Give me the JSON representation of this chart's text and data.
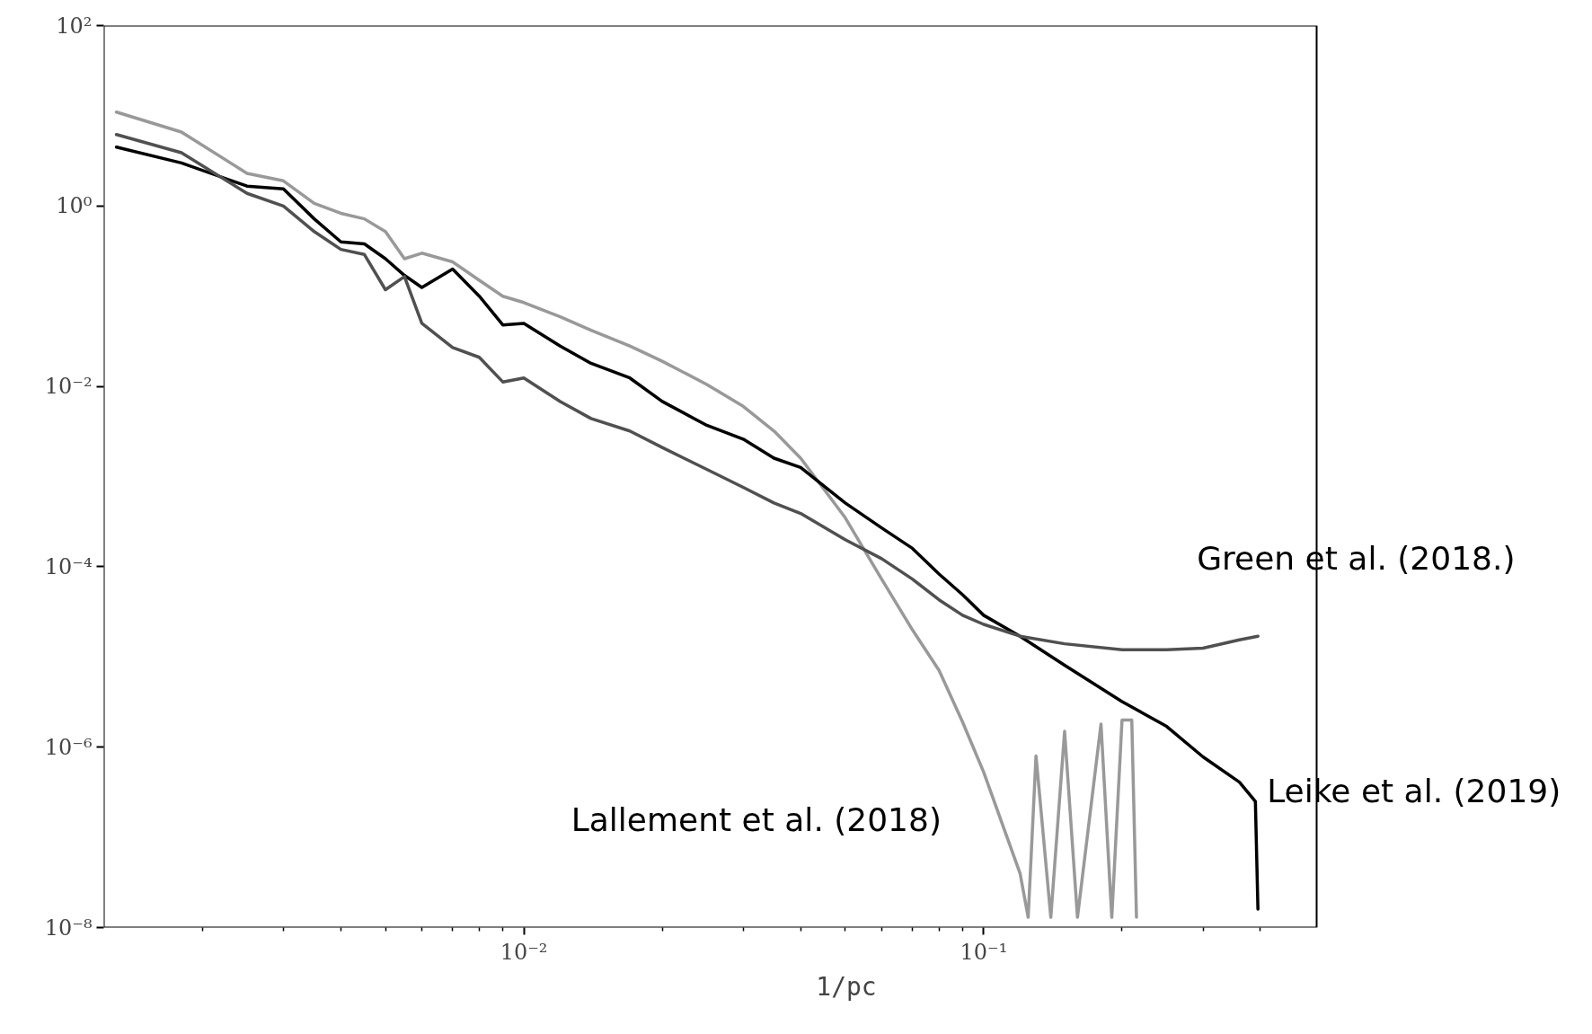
{
  "chart_data": {
    "type": "line",
    "xlabel": "1/pc",
    "log": "xy",
    "grid": false,
    "marker": "none",
    "line_style": "solid",
    "xlim": [
      0.00122,
      0.53
    ],
    "ylim": [
      1e-08,
      100
    ],
    "xticks": [
      {
        "value": 0.002,
        "label": null
      },
      {
        "value": 0.003,
        "label": null
      },
      {
        "value": 0.004,
        "label": null
      },
      {
        "value": 0.005,
        "label": null
      },
      {
        "value": 0.006,
        "label": null
      },
      {
        "value": 0.007,
        "label": null
      },
      {
        "value": 0.008,
        "label": null
      },
      {
        "value": 0.009,
        "label": null
      },
      {
        "value": 0.01,
        "label": "10⁻²"
      },
      {
        "value": 0.02,
        "label": null
      },
      {
        "value": 0.03,
        "label": null
      },
      {
        "value": 0.04,
        "label": null
      },
      {
        "value": 0.05,
        "label": null
      },
      {
        "value": 0.06,
        "label": null
      },
      {
        "value": 0.07,
        "label": null
      },
      {
        "value": 0.08,
        "label": null
      },
      {
        "value": 0.09,
        "label": null
      },
      {
        "value": 0.1,
        "label": "10⁻¹"
      },
      {
        "value": 0.2,
        "label": null
      },
      {
        "value": 0.3,
        "label": null
      },
      {
        "value": 0.4,
        "label": null
      }
    ],
    "yticks": [
      {
        "value": 1e-08,
        "label": "10⁻⁸"
      },
      {
        "value": 1e-06,
        "label": "10⁻⁶"
      },
      {
        "value": 0.0001,
        "label": "10⁻⁴"
      },
      {
        "value": 0.01,
        "label": "10⁻²"
      },
      {
        "value": 1,
        "label": "10⁰"
      },
      {
        "value": 100,
        "label": "10²"
      }
    ],
    "series": [
      {
        "name": "Lallement et al. (2018)",
        "color": "#999999",
        "x": [
          0.0013,
          0.0018,
          0.0025,
          0.003,
          0.0035,
          0.004,
          0.0045,
          0.005,
          0.0055,
          0.006,
          0.007,
          0.008,
          0.009,
          0.01,
          0.012,
          0.014,
          0.017,
          0.02,
          0.025,
          0.03,
          0.035,
          0.04,
          0.05,
          0.06,
          0.07,
          0.08,
          0.09,
          0.1,
          0.12,
          0.125,
          0.13,
          0.14,
          0.15,
          0.16,
          0.18,
          0.19,
          0.2,
          0.21,
          0.215
        ],
        "values": [
          11,
          6.6,
          2.3,
          1.9,
          1.07,
          0.83,
          0.72,
          0.52,
          0.26,
          0.3,
          0.24,
          0.15,
          0.1,
          0.085,
          0.059,
          0.042,
          0.028,
          0.019,
          0.0105,
          0.006,
          0.0032,
          0.0016,
          0.00035,
          7.3e-05,
          2e-05,
          7.1e-06,
          1.9e-06,
          5.3e-07,
          4e-08,
          1.3e-08,
          8e-07,
          1.3e-08,
          1.5e-06,
          1.3e-08,
          1.8e-06,
          1.3e-08,
          2e-06,
          2e-06,
          1.3e-08
        ]
      },
      {
        "name": "Leike et al. (2019)",
        "color": "#000000",
        "x": [
          0.0013,
          0.0018,
          0.0025,
          0.003,
          0.0035,
          0.004,
          0.0045,
          0.005,
          0.0055,
          0.006,
          0.007,
          0.008,
          0.009,
          0.01,
          0.012,
          0.014,
          0.017,
          0.02,
          0.025,
          0.03,
          0.035,
          0.04,
          0.05,
          0.06,
          0.07,
          0.08,
          0.09,
          0.1,
          0.12,
          0.15,
          0.2,
          0.25,
          0.3,
          0.36,
          0.39,
          0.395
        ],
        "values": [
          4.5,
          3.0,
          1.66,
          1.55,
          0.72,
          0.4,
          0.38,
          0.26,
          0.17,
          0.125,
          0.2,
          0.1,
          0.048,
          0.05,
          0.028,
          0.018,
          0.0124,
          0.0068,
          0.0037,
          0.0026,
          0.0016,
          0.00126,
          0.00051,
          0.00027,
          0.00016,
          8.3e-05,
          4.9e-05,
          2.9e-05,
          1.7e-05,
          8.1e-06,
          3.2e-06,
          1.7e-06,
          7.8e-07,
          4.1e-07,
          2.5e-07,
          1.6e-08
        ]
      },
      {
        "name": "Green et al.  (2018.)",
        "color": "#505050",
        "x": [
          0.0013,
          0.0018,
          0.0025,
          0.003,
          0.0035,
          0.004,
          0.0045,
          0.005,
          0.0055,
          0.006,
          0.007,
          0.008,
          0.009,
          0.01,
          0.012,
          0.014,
          0.017,
          0.02,
          0.025,
          0.03,
          0.035,
          0.04,
          0.05,
          0.06,
          0.07,
          0.08,
          0.09,
          0.1,
          0.12,
          0.15,
          0.2,
          0.25,
          0.3,
          0.36,
          0.395
        ],
        "values": [
          6.2,
          3.9,
          1.38,
          1.0,
          0.52,
          0.33,
          0.29,
          0.118,
          0.165,
          0.05,
          0.027,
          0.021,
          0.0112,
          0.0124,
          0.0068,
          0.0044,
          0.0032,
          0.0021,
          0.0012,
          0.00076,
          0.00051,
          0.00039,
          0.0002,
          0.000123,
          7.3e-05,
          4.3e-05,
          2.9e-05,
          2.3e-05,
          1.7e-05,
          1.4e-05,
          1.2e-05,
          1.2e-05,
          1.25e-05,
          1.55e-05,
          1.7e-05
        ]
      }
    ]
  }
}
